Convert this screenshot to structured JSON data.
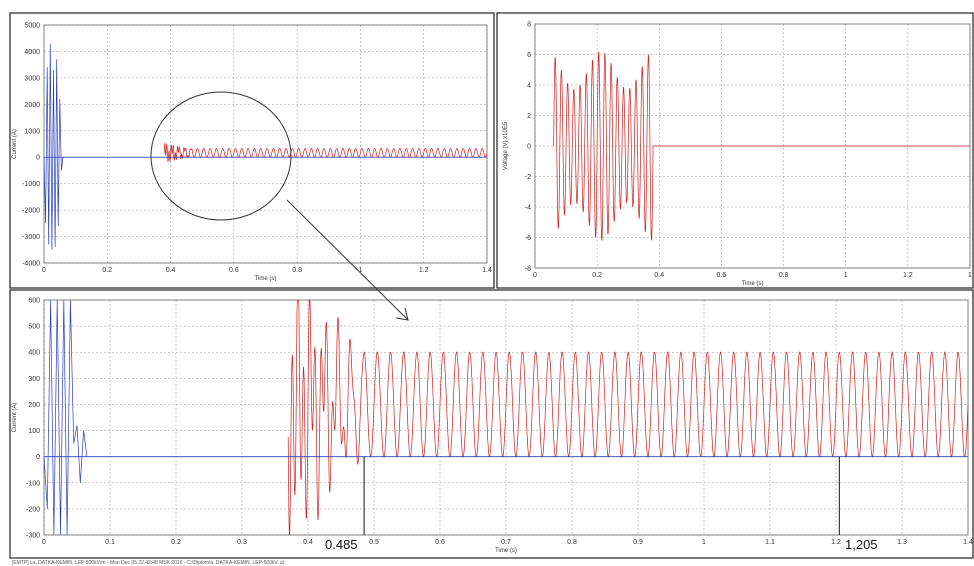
{
  "charts": [
    {
      "id": "top-left",
      "x_ticks": [
        "0",
        "0.2",
        "0.4",
        "0.6",
        "0.8",
        "1",
        "1.2",
        "1.4"
      ],
      "y_ticks": [
        "5000",
        "4000",
        "3000",
        "2000",
        "1000",
        "0",
        "-1000",
        "-2000",
        "-3000",
        "-4000"
      ],
      "xlabel": "Time (s)",
      "ylabel": "Current (A)"
    },
    {
      "id": "top-right",
      "x_ticks": [
        "0",
        "0.2",
        "0.4",
        "0.6",
        "0.8",
        "1",
        "1.2",
        "1"
      ],
      "y_ticks": [
        "8",
        "6",
        "4",
        "2",
        "0",
        "-2",
        "-4",
        "-6",
        "-8"
      ],
      "xlabel": "Time (s)",
      "ylabel": "Voltage (V) x10E5"
    },
    {
      "id": "bottom",
      "x_ticks": [
        "0",
        "0.1",
        "0.2",
        "0.3",
        "0.4",
        "0.5",
        "0.6",
        "0.7",
        "0.8",
        "0.9",
        "1",
        "1.1",
        "1.2",
        "1.3",
        "1.4"
      ],
      "y_ticks": [
        "600",
        "500",
        "400",
        "300",
        "200",
        "100",
        "0",
        "-100",
        "-200",
        "-300"
      ],
      "xlabel": "Time (s)",
      "ylabel": "Current (A)"
    }
  ],
  "markers": [
    "0.485",
    "1,205"
  ],
  "footer": "[EMTP] i.a, DATKA-KEMIN, LEP-500kV/m - Mon Dec 05 22:42:48 MSK 2016 - C:\\Diplom\\a, DATKA-KEMIN, LEP-500kV, a)",
  "colors": {
    "blue": "#2b3fbf",
    "red": "#cc1f1f",
    "grid": "#9a9a9a",
    "frame": "#222222"
  },
  "chart_data": [
    {
      "type": "line",
      "xlim": [
        0,
        1.4
      ],
      "ylim": [
        -4000,
        5000
      ],
      "series": [
        {
          "color": "#2b3fbf",
          "x": [
            0.0,
            0.005,
            0.01,
            0.015,
            0.02,
            0.025,
            0.03,
            0.035,
            0.04,
            0.045,
            0.05,
            0.055,
            0.06,
            0.065,
            1.4
          ],
          "y": [
            0,
            -2500,
            3400,
            -3300,
            4300,
            -3500,
            3300,
            -3400,
            3700,
            -2600,
            2200,
            -500,
            0,
            0,
            0
          ]
        },
        {
          "color": "#cc1f1f",
          "x_start": 0.38,
          "x_end": 1.4,
          "steady_amplitude": 330,
          "frequency_hz": 50,
          "transient_peak": 600
        }
      ]
    },
    {
      "type": "line",
      "xlim": [
        0,
        1.4
      ],
      "ylim": [
        -8,
        8
      ],
      "series": [
        {
          "color": "#cc1f1f",
          "x_start": 0.06,
          "x_end": 0.38,
          "amplitude": 6.2,
          "frequency_hz": 50,
          "after": 0
        }
      ]
    },
    {
      "type": "line",
      "xlim": [
        0,
        1.4
      ],
      "ylim": [
        -300,
        600
      ],
      "series": [
        {
          "color": "#2b3fbf",
          "x": [
            0.0,
            0.005,
            0.01,
            0.015,
            0.02,
            0.025,
            0.03,
            0.035,
            0.04,
            0.045,
            0.05,
            0.055,
            0.06,
            0.065
          ],
          "y": [
            0,
            -200,
            600,
            -300,
            600,
            -300,
            600,
            -300,
            600,
            50,
            120,
            -100,
            100,
            0
          ]
        },
        {
          "color": "#cc1f1f",
          "x_start": 0.37,
          "x_end": 1.4,
          "steady_center": 200,
          "steady_amplitude": 200,
          "decay_end": 0.485,
          "frequency_hz": 50
        }
      ]
    }
  ]
}
